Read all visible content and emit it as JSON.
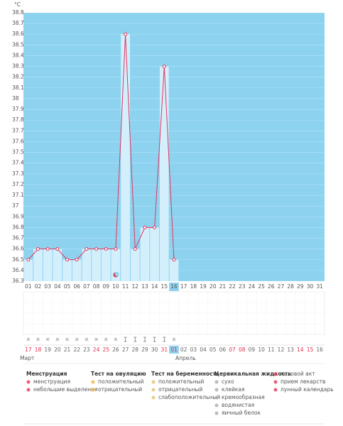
{
  "chart_data": {
    "type": "line",
    "ylabel": "°C",
    "categories": [
      "01",
      "02",
      "03",
      "04",
      "05",
      "06",
      "07",
      "08",
      "09",
      "10",
      "11",
      "12",
      "13",
      "14",
      "15",
      "16",
      "17",
      "18",
      "19",
      "20",
      "21",
      "22",
      "23",
      "24",
      "25",
      "26",
      "27",
      "28",
      "29",
      "30",
      "31"
    ],
    "values": [
      36.5,
      36.6,
      36.6,
      36.6,
      36.5,
      36.5,
      36.6,
      36.6,
      36.6,
      36.6,
      38.6,
      36.6,
      36.8,
      36.8,
      38.3,
      36.5,
      null,
      null,
      null,
      null,
      null,
      null,
      null,
      null,
      null,
      null,
      null,
      null,
      null,
      null,
      null
    ],
    "ylim": [
      36.3,
      38.8
    ],
    "yticks": [
      38.8,
      38.7,
      38.6,
      38.5,
      38.4,
      38.3,
      38.2,
      38.1,
      38,
      37.9,
      37.8,
      37.7,
      37.6,
      37.5,
      37.4,
      37.3,
      37.2,
      37.1,
      37,
      36.9,
      36.8,
      36.7,
      36.6,
      36.5,
      36.4,
      36.3
    ],
    "color": "#e2365e",
    "background": "#8dd3f0",
    "bar_color": "#d4effc",
    "grid": true,
    "selected": "16",
    "moon": [
      "10"
    ],
    "cervical_fluid": [
      "сухо",
      "сухо",
      "сухо",
      "сухо",
      "сухо",
      "сухо",
      "сухо",
      "сухо",
      "сухо",
      "сухо",
      "клейкая",
      "клейкая",
      "клейкая",
      "клейкая",
      "клейкая",
      "сухо"
    ],
    "dates": [
      {
        "label": "17",
        "weekend": true
      },
      {
        "label": "18",
        "weekend": true
      },
      {
        "label": "19"
      },
      {
        "label": "20"
      },
      {
        "label": "21"
      },
      {
        "label": "22"
      },
      {
        "label": "23"
      },
      {
        "label": "24",
        "weekend": true
      },
      {
        "label": "25",
        "weekend": true
      },
      {
        "label": "26"
      },
      {
        "label": "27"
      },
      {
        "label": "28"
      },
      {
        "label": "29"
      },
      {
        "label": "30"
      },
      {
        "label": "31",
        "weekend": true
      },
      {
        "label": "01",
        "weekend": true
      },
      {
        "label": "02"
      },
      {
        "label": "03"
      },
      {
        "label": "04"
      },
      {
        "label": "05"
      },
      {
        "label": "06"
      },
      {
        "label": "07",
        "weekend": true
      },
      {
        "label": "08",
        "weekend": true
      },
      {
        "label": "09"
      },
      {
        "label": "10"
      },
      {
        "label": "11"
      },
      {
        "label": "12"
      },
      {
        "label": "13"
      },
      {
        "label": "14",
        "weekend": true
      },
      {
        "label": "15",
        "weekend": true
      },
      {
        "label": "16"
      }
    ],
    "months": [
      {
        "label": "Март",
        "start": 0
      },
      {
        "label": "Апрель",
        "start": 16
      }
    ]
  },
  "legend": [
    {
      "title": "Менструация",
      "items": [
        "менструация",
        "небольшие выделения"
      ]
    },
    {
      "title": "Тест на овуляцию",
      "items": [
        "положительный",
        "отрицательный"
      ]
    },
    {
      "title": "Тест на беременность",
      "items": [
        "положительный",
        "отрицательный",
        "слабоположительный"
      ]
    },
    {
      "title": "Цервикальная жидкость",
      "items": [
        "сухо",
        "клейкая",
        "кремообразная",
        "водянистая",
        "яичный белок"
      ]
    },
    {
      "items": [
        "половой акт",
        "прием лекарств",
        "лунный календарь"
      ]
    }
  ]
}
